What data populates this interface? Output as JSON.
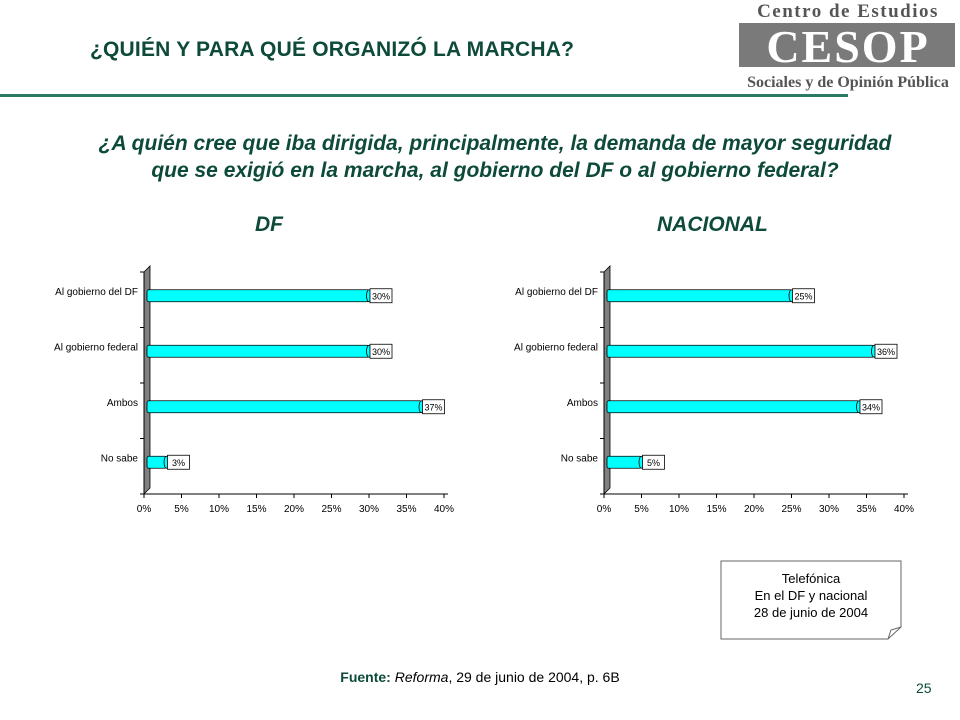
{
  "slide": {
    "title": "¿QUIÉN Y PARA QUÉ ORGANIZÓ LA MARCHA?",
    "question_line1": "¿A quién cree que iba dirigida, principalmente, la demanda de mayor seguridad",
    "question_line2": "que se exigió en la marcha, al gobierno del DF o al gobierno federal?",
    "page_number": "25"
  },
  "logo": {
    "top_text": "Centro de Estudios",
    "mark_text": "CESOP",
    "bottom_text": "Sociales y de Opinión Pública"
  },
  "note": {
    "line1": "Telefónica",
    "line2": "En el DF y nacional",
    "line3": "28 de junio de 2004"
  },
  "source": {
    "label": "Fuente:",
    "publication": "Reforma",
    "rest": ", 29 de junio de 2004, p. 6B"
  },
  "colors": {
    "accent": "#0d4a39",
    "rule": "#2a7a63",
    "bar_fill": "#00ffff",
    "axis_wall": "#808080"
  },
  "chart_data": [
    {
      "type": "bar",
      "orientation": "horizontal",
      "title": "DF",
      "categories": [
        "Al gobierno del DF",
        "Al gobierno federal",
        "Ambos",
        "No sabe"
      ],
      "values": [
        30,
        30,
        37,
        3
      ],
      "value_labels": [
        "30%",
        "30%",
        "37%",
        "3%"
      ],
      "xlim": [
        0,
        40
      ],
      "xticks": [
        "0%",
        "5%",
        "10%",
        "15%",
        "20%",
        "25%",
        "30%",
        "35%",
        "40%"
      ],
      "grid": false,
      "legend": "none"
    },
    {
      "type": "bar",
      "orientation": "horizontal",
      "title": "NACIONAL",
      "categories": [
        "Al gobierno del DF",
        "Al gobierno federal",
        "Ambos",
        "No sabe"
      ],
      "values": [
        25,
        36,
        34,
        5
      ],
      "value_labels": [
        "25%",
        "36%",
        "34%",
        "5%"
      ],
      "xlim": [
        0,
        40
      ],
      "xticks": [
        "0%",
        "5%",
        "10%",
        "15%",
        "20%",
        "25%",
        "30%",
        "35%",
        "40%"
      ],
      "grid": false,
      "legend": "none"
    }
  ]
}
